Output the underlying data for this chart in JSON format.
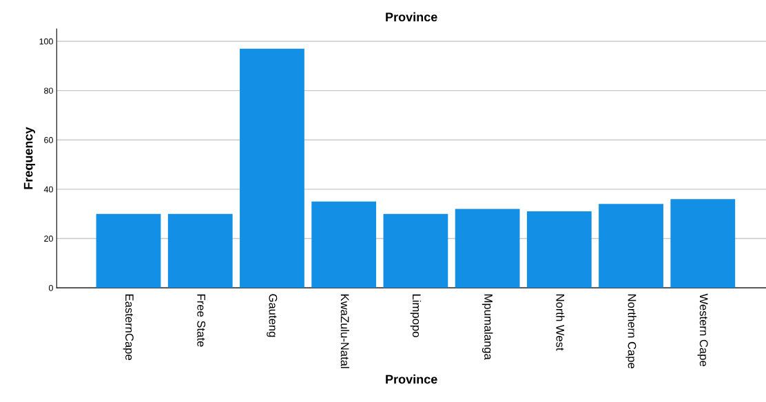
{
  "chart_data": {
    "type": "bar",
    "title": "Province",
    "xlabel": "Province",
    "ylabel": "Frequency",
    "categories": [
      "EasternCape",
      "Free State",
      "Gauteng",
      "KwaZulu-Natal",
      "Limpopo",
      "Mpumalanga",
      "North West",
      "Northern Cape",
      "Western Cape"
    ],
    "values": [
      30,
      30,
      97,
      35,
      30,
      32,
      31,
      34,
      36
    ],
    "color": "#1390e6",
    "ylim": [
      0,
      105
    ],
    "yticks": [
      0,
      20,
      40,
      60,
      80,
      100
    ],
    "grid": "y"
  }
}
